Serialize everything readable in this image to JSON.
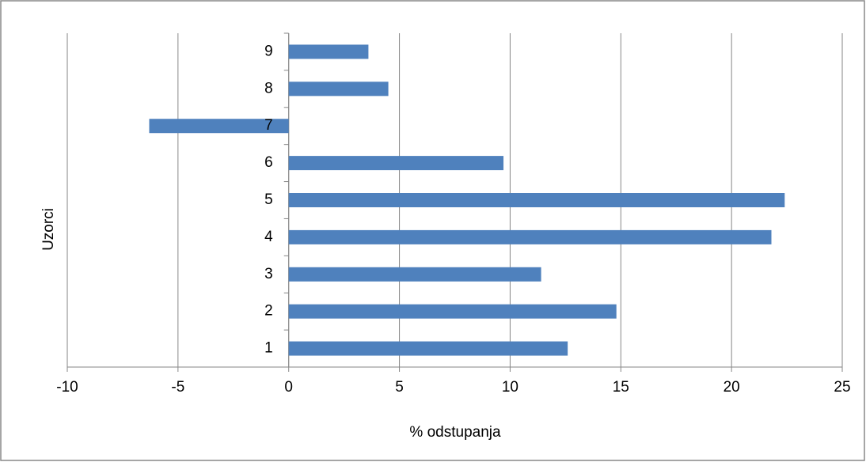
{
  "chart_data": {
    "type": "hbar",
    "categories": [
      "1",
      "2",
      "3",
      "4",
      "5",
      "6",
      "7",
      "8",
      "9"
    ],
    "values": [
      12.6,
      14.8,
      11.4,
      21.8,
      22.4,
      9.7,
      -6.3,
      4.5,
      3.6
    ],
    "color": "#4f81bd",
    "xlim": [
      -10,
      25
    ],
    "xticks": [
      -10,
      -5,
      0,
      5,
      10,
      15,
      20,
      25
    ],
    "xlabel": "% odstupanja",
    "ylabel": "Uzorci",
    "grid": true
  }
}
